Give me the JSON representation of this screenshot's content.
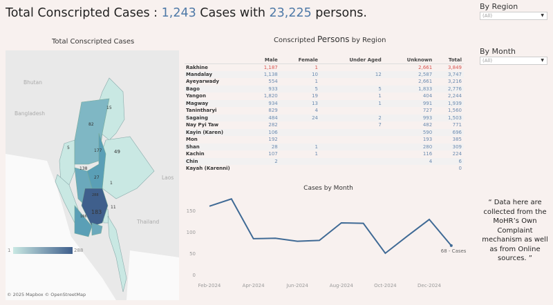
{
  "header": {
    "prefix": "Total Conscripted Cases : ",
    "cases": "1,243",
    "middle": " Cases with ",
    "persons": "23,225",
    "suffix": " persons."
  },
  "filters": [
    {
      "label": "By Region",
      "value": "(All)"
    },
    {
      "label": "By Month",
      "value": "(All)"
    }
  ],
  "map": {
    "title": "Total Conscripted Cases",
    "countries": [
      "Bhutan",
      "Bangladesh",
      "Laos",
      "Thailand"
    ],
    "region_labels": [
      "15",
      "82",
      "5",
      "177",
      "49",
      "138",
      "27",
      "1",
      "288",
      "11",
      "183",
      "166"
    ],
    "legend": {
      "min": "1",
      "max": "288",
      "color_low": "#c9e8e3",
      "color_high": "#3f5f8c"
    },
    "attribution": "© 2025 Mapbox © OpenStreetMap"
  },
  "table": {
    "title_a": "Conscripted ",
    "title_b": "Persons",
    "title_c": " by Region",
    "columns": [
      "",
      "Male",
      "Female",
      "Under Aged",
      "Unknown",
      "Total"
    ],
    "rows": [
      [
        "Rakhine",
        "1,187",
        "1",
        "",
        "2,661",
        "3,849"
      ],
      [
        "Mandalay",
        "1,138",
        "10",
        "12",
        "2,587",
        "3,747"
      ],
      [
        "Ayeyarwady",
        "554",
        "1",
        "",
        "2,661",
        "3,216"
      ],
      [
        "Bago",
        "933",
        "5",
        "5",
        "1,833",
        "2,776"
      ],
      [
        "Yangon",
        "1,820",
        "19",
        "1",
        "404",
        "2,244"
      ],
      [
        "Magway",
        "934",
        "13",
        "1",
        "991",
        "1,939"
      ],
      [
        "Tanintharyi",
        "829",
        "4",
        "",
        "727",
        "1,560"
      ],
      [
        "Sagaing",
        "484",
        "24",
        "2",
        "993",
        "1,503"
      ],
      [
        "Nay Pyi Taw",
        "282",
        "",
        "7",
        "482",
        "771"
      ],
      [
        "Kayin (Karen)",
        "106",
        "",
        "",
        "590",
        "696"
      ],
      [
        "Mon",
        "192",
        "",
        "",
        "193",
        "385"
      ],
      [
        "Shan",
        "28",
        "1",
        "",
        "280",
        "309"
      ],
      [
        "Kachin",
        "107",
        "1",
        "",
        "116",
        "224"
      ],
      [
        "Chin",
        "2",
        "",
        "",
        "4",
        "6"
      ],
      [
        "Kayah (Karenni)",
        "",
        "",
        "",
        "",
        "0"
      ]
    ],
    "highlight_color": "#d9534f"
  },
  "chart_data": {
    "type": "line",
    "title": "Cases by Month",
    "x": [
      "Feb-2024",
      "Mar-2024",
      "Apr-2024",
      "May-2024",
      "Jun-2024",
      "Jul-2024",
      "Aug-2024",
      "Sep-2024",
      "Oct-2024",
      "Nov-2024",
      "Dec-2024",
      "Jan-2025"
    ],
    "values": [
      160,
      177,
      84,
      85,
      78,
      80,
      121,
      120,
      50,
      90,
      129,
      68
    ],
    "xtick_labels": [
      "Feb-2024",
      "Apr-2024",
      "Jun-2024",
      "Aug-2024",
      "Oct-2024",
      "Dec-2024"
    ],
    "yticks": [
      0,
      50,
      100,
      150
    ],
    "ylim": [
      0,
      190
    ],
    "grid": false,
    "end_label": "68 - Cases",
    "color": "#3f6a95"
  },
  "note": "“ Data here are collected from the MoHR’s Own Complaint mechanism as well as from Online sources. ”"
}
